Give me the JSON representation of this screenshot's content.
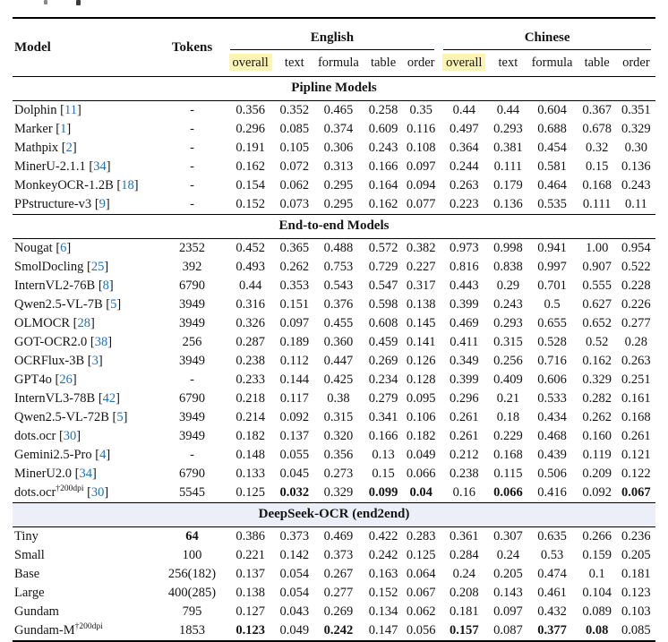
{
  "page": {
    "cropped_caption_fragments": "partial glyph descenders cut off at top edge"
  },
  "colors": {
    "overall_highlight": "#FBF4B4",
    "deepseek_band": "#EDEFF8",
    "citation_blue": "#1D72B8",
    "text": "#141414"
  },
  "table": {
    "header": {
      "model": "Model",
      "tokens": "Tokens",
      "groups": [
        {
          "label": "English"
        },
        {
          "label": "Chinese"
        }
      ],
      "subcolumns": [
        "overall",
        "text",
        "formula",
        "table",
        "order"
      ]
    },
    "sections": [
      {
        "title": "Pipline Models",
        "highlight_band": false,
        "rows": [
          {
            "model": "Dolphin",
            "cite": "11",
            "tokens": "-",
            "values": [
              "0.356",
              "0.352",
              "0.465",
              "0.258",
              "0.35",
              "0.44",
              "0.44",
              "0.604",
              "0.367",
              "0.351"
            ],
            "bold": []
          },
          {
            "model": "Marker",
            "cite": "1",
            "tokens": "-",
            "values": [
              "0.296",
              "0.085",
              "0.374",
              "0.609",
              "0.116",
              "0.497",
              "0.293",
              "0.688",
              "0.678",
              "0.329"
            ],
            "bold": []
          },
          {
            "model": "Mathpix",
            "cite": "2",
            "tokens": "-",
            "values": [
              "0.191",
              "0.105",
              "0.306",
              "0.243",
              "0.108",
              "0.364",
              "0.381",
              "0.454",
              "0.32",
              "0.30"
            ],
            "bold": []
          },
          {
            "model": "MinerU-2.1.1",
            "cite": "34",
            "tokens": "-",
            "values": [
              "0.162",
              "0.072",
              "0.313",
              "0.166",
              "0.097",
              "0.244",
              "0.111",
              "0.581",
              "0.15",
              "0.136"
            ],
            "bold": []
          },
          {
            "model": "MonkeyOCR-1.2B",
            "cite": "18",
            "tokens": "-",
            "values": [
              "0.154",
              "0.062",
              "0.295",
              "0.164",
              "0.094",
              "0.263",
              "0.179",
              "0.464",
              "0.168",
              "0.243"
            ],
            "bold": []
          },
          {
            "model": "PPstructure-v3",
            "cite": "9",
            "tokens": "-",
            "values": [
              "0.152",
              "0.073",
              "0.295",
              "0.162",
              "0.077",
              "0.223",
              "0.136",
              "0.535",
              "0.111",
              "0.11"
            ],
            "bold": []
          }
        ]
      },
      {
        "title": "End-to-end Models",
        "highlight_band": false,
        "rows": [
          {
            "model": "Nougat",
            "cite": "6",
            "tokens": "2352",
            "values": [
              "0.452",
              "0.365",
              "0.488",
              "0.572",
              "0.382",
              "0.973",
              "0.998",
              "0.941",
              "1.00",
              "0.954"
            ],
            "bold": []
          },
          {
            "model": "SmolDocling",
            "cite": "25",
            "tokens": "392",
            "values": [
              "0.493",
              "0.262",
              "0.753",
              "0.729",
              "0.227",
              "0.816",
              "0.838",
              "0.997",
              "0.907",
              "0.522"
            ],
            "bold": []
          },
          {
            "model": "InternVL2-76B",
            "cite": "8",
            "tokens": "6790",
            "values": [
              "0.44",
              "0.353",
              "0.543",
              "0.547",
              "0.317",
              "0.443",
              "0.29",
              "0.701",
              "0.555",
              "0.228"
            ],
            "bold": []
          },
          {
            "model": "Qwen2.5-VL-7B",
            "cite": "5",
            "tokens": "3949",
            "values": [
              "0.316",
              "0.151",
              "0.376",
              "0.598",
              "0.138",
              "0.399",
              "0.243",
              "0.5",
              "0.627",
              "0.226"
            ],
            "bold": []
          },
          {
            "model": "OLMOCR",
            "cite": "28",
            "tokens": "3949",
            "values": [
              "0.326",
              "0.097",
              "0.455",
              "0.608",
              "0.145",
              "0.469",
              "0.293",
              "0.655",
              "0.652",
              "0.277"
            ],
            "bold": []
          },
          {
            "model": "GOT-OCR2.0",
            "cite": "38",
            "tokens": "256",
            "values": [
              "0.287",
              "0.189",
              "0.360",
              "0.459",
              "0.141",
              "0.411",
              "0.315",
              "0.528",
              "0.52",
              "0.28"
            ],
            "bold": []
          },
          {
            "model": "OCRFlux-3B",
            "cite": "3",
            "tokens": "3949",
            "values": [
              "0.238",
              "0.112",
              "0.447",
              "0.269",
              "0.126",
              "0.349",
              "0.256",
              "0.716",
              "0.162",
              "0.263"
            ],
            "bold": []
          },
          {
            "model": "GPT4o",
            "cite": "26",
            "tokens": "-",
            "values": [
              "0.233",
              "0.144",
              "0.425",
              "0.234",
              "0.128",
              "0.399",
              "0.409",
              "0.606",
              "0.329",
              "0.251"
            ],
            "bold": []
          },
          {
            "model": "InternVL3-78B",
            "cite": "42",
            "tokens": "6790",
            "values": [
              "0.218",
              "0.117",
              "0.38",
              "0.279",
              "0.095",
              "0.296",
              "0.21",
              "0.533",
              "0.282",
              "0.161"
            ],
            "bold": []
          },
          {
            "model": "Qwen2.5-VL-72B",
            "cite": "5",
            "tokens": "3949",
            "values": [
              "0.214",
              "0.092",
              "0.315",
              "0.341",
              "0.106",
              "0.261",
              "0.18",
              "0.434",
              "0.262",
              "0.168"
            ],
            "bold": []
          },
          {
            "model": "dots.ocr",
            "cite": "30",
            "tokens": "3949",
            "values": [
              "0.182",
              "0.137",
              "0.320",
              "0.166",
              "0.182",
              "0.261",
              "0.229",
              "0.468",
              "0.160",
              "0.261"
            ],
            "bold": []
          },
          {
            "model": "Gemini2.5-Pro",
            "cite": "4",
            "tokens": "-",
            "values": [
              "0.148",
              "0.055",
              "0.356",
              "0.13",
              "0.049",
              "0.212",
              "0.168",
              "0.439",
              "0.119",
              "0.121"
            ],
            "bold": []
          },
          {
            "model": "MinerU2.0",
            "cite": "34",
            "tokens": "6790",
            "values": [
              "0.133",
              "0.045",
              "0.273",
              "0.15",
              "0.066",
              "0.238",
              "0.115",
              "0.506",
              "0.209",
              "0.122"
            ],
            "bold": []
          },
          {
            "model": "dots.ocr",
            "sup": "†200dpi",
            "cite": "30",
            "tokens": "5545",
            "values": [
              "0.125",
              "0.032",
              "0.329",
              "0.099",
              "0.04",
              "0.16",
              "0.066",
              "0.416",
              "0.092",
              "0.067"
            ],
            "bold": [
              1,
              3,
              4,
              6,
              9
            ]
          }
        ]
      },
      {
        "title": "DeepSeek-OCR (end2end)",
        "highlight_band": true,
        "rows": [
          {
            "model": "Tiny",
            "tokens": "64",
            "tokens_bold": true,
            "values": [
              "0.386",
              "0.373",
              "0.469",
              "0.422",
              "0.283",
              "0.361",
              "0.307",
              "0.635",
              "0.266",
              "0.236"
            ],
            "bold": []
          },
          {
            "model": "Small",
            "tokens": "100",
            "values": [
              "0.221",
              "0.142",
              "0.373",
              "0.242",
              "0.125",
              "0.284",
              "0.24",
              "0.53",
              "0.159",
              "0.205"
            ],
            "bold": []
          },
          {
            "model": "Base",
            "tokens": "256(182)",
            "values": [
              "0.137",
              "0.054",
              "0.267",
              "0.163",
              "0.064",
              "0.24",
              "0.205",
              "0.474",
              "0.1",
              "0.181"
            ],
            "bold": []
          },
          {
            "model": "Large",
            "tokens": "400(285)",
            "values": [
              "0.138",
              "0.054",
              "0.277",
              "0.152",
              "0.067",
              "0.208",
              "0.143",
              "0.461",
              "0.104",
              "0.123"
            ],
            "bold": []
          },
          {
            "model": "Gundam",
            "tokens": "795",
            "values": [
              "0.127",
              "0.043",
              "0.269",
              "0.134",
              "0.062",
              "0.181",
              "0.097",
              "0.432",
              "0.089",
              "0.103"
            ],
            "bold": []
          },
          {
            "model": "Gundam-M",
            "sup": "†200dpi",
            "tokens": "1853",
            "values": [
              "0.123",
              "0.049",
              "0.242",
              "0.147",
              "0.056",
              "0.157",
              "0.087",
              "0.377",
              "0.08",
              "0.085"
            ],
            "bold": [
              0,
              2,
              5,
              7,
              8
            ]
          }
        ]
      }
    ]
  }
}
